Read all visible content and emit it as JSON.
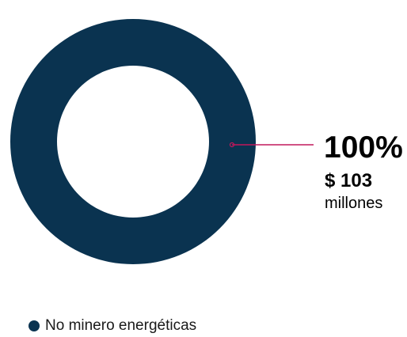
{
  "chart_data": {
    "type": "pie",
    "donut": true,
    "slices": [
      {
        "name": "No minero energéticas",
        "value": 103,
        "percent_label": "100%",
        "amount_label": "$ 103",
        "unit_label": "millones",
        "color": "#0a3350"
      }
    ],
    "legend_placement": "bottom-left",
    "leader_color": "#c2185b"
  }
}
